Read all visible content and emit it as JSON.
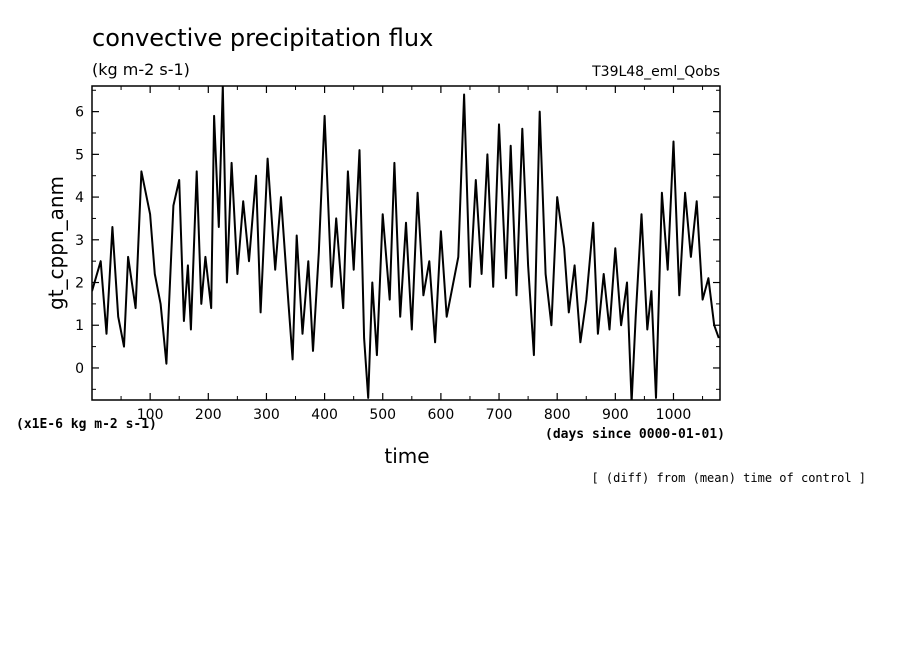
{
  "chart_data": {
    "type": "line",
    "title": "convective precipitation flux",
    "units": "(kg m-2 s-1)",
    "run_label": "T39L48_eml_Qobs",
    "xlabel": "time",
    "ylabel": "gt_cppn_anm",
    "x_units_note": "(days since 0000-01-01)",
    "y_scale_note": "(x1E-6 kg m-2 s-1)",
    "footnote": "[ (diff) from (mean) time of control ]",
    "xlim": [
      0,
      1080
    ],
    "ylim": [
      -0.75,
      6.6
    ],
    "x_ticks": [
      100,
      200,
      300,
      400,
      500,
      600,
      700,
      800,
      900,
      1000
    ],
    "y_ticks": [
      0,
      1,
      2,
      3,
      4,
      5,
      6
    ],
    "x_tick_labels": [
      "100",
      "200",
      "300",
      "400",
      "500",
      "600",
      "700",
      "800",
      "900",
      "1000"
    ],
    "y_tick_labels": [
      "0",
      "1",
      "2",
      "3",
      "4",
      "5",
      "6"
    ],
    "series": [
      {
        "name": "gt_cppn_anm",
        "x": [
          0,
          15,
          25,
          35,
          45,
          55,
          62,
          75,
          85,
          100,
          108,
          118,
          128,
          140,
          150,
          158,
          165,
          170,
          180,
          188,
          195,
          205,
          210,
          218,
          225,
          232,
          240,
          250,
          260,
          270,
          282,
          290,
          302,
          315,
          325,
          338,
          345,
          352,
          362,
          372,
          380,
          390,
          400,
          412,
          420,
          432,
          440,
          450,
          460,
          468,
          475,
          482,
          490,
          500,
          512,
          520,
          530,
          540,
          550,
          560,
          570,
          580,
          590,
          600,
          610,
          620,
          630,
          640,
          650,
          660,
          670,
          680,
          690,
          700,
          712,
          720,
          730,
          740,
          750,
          760,
          770,
          780,
          790,
          800,
          812,
          820,
          830,
          840,
          850,
          862,
          870,
          880,
          890,
          900,
          910,
          920,
          928,
          935,
          945,
          955,
          962,
          970,
          980,
          990,
          1000,
          1010,
          1020,
          1030,
          1040,
          1050,
          1060,
          1070,
          1078
        ],
        "y": [
          1.8,
          2.5,
          0.8,
          3.3,
          1.2,
          0.5,
          2.6,
          1.4,
          4.6,
          3.6,
          2.2,
          1.5,
          0.1,
          3.8,
          4.4,
          1.1,
          2.4,
          0.9,
          4.6,
          1.5,
          2.6,
          1.4,
          5.9,
          3.3,
          6.6,
          2.0,
          4.8,
          2.2,
          3.9,
          2.5,
          4.5,
          1.3,
          4.9,
          2.3,
          4.0,
          1.5,
          0.2,
          3.1,
          0.8,
          2.5,
          0.4,
          2.7,
          5.9,
          1.9,
          3.5,
          1.4,
          4.6,
          2.3,
          5.1,
          0.7,
          -0.7,
          2.0,
          0.3,
          3.6,
          1.6,
          4.8,
          1.2,
          3.4,
          0.9,
          4.1,
          1.7,
          2.5,
          0.6,
          3.2,
          1.2,
          1.9,
          2.6,
          6.4,
          1.9,
          4.4,
          2.2,
          5.0,
          1.9,
          5.7,
          2.1,
          5.2,
          1.7,
          5.6,
          2.4,
          0.3,
          6.0,
          2.2,
          1.0,
          4.0,
          2.8,
          1.3,
          2.4,
          0.6,
          1.6,
          3.4,
          0.8,
          2.2,
          0.9,
          2.8,
          1.0,
          2.0,
          -0.8,
          1.2,
          3.6,
          0.9,
          1.8,
          -0.7,
          4.1,
          2.3,
          5.3,
          1.7,
          4.1,
          2.6,
          3.9,
          1.6,
          2.1,
          1.0,
          0.7
        ]
      }
    ]
  }
}
